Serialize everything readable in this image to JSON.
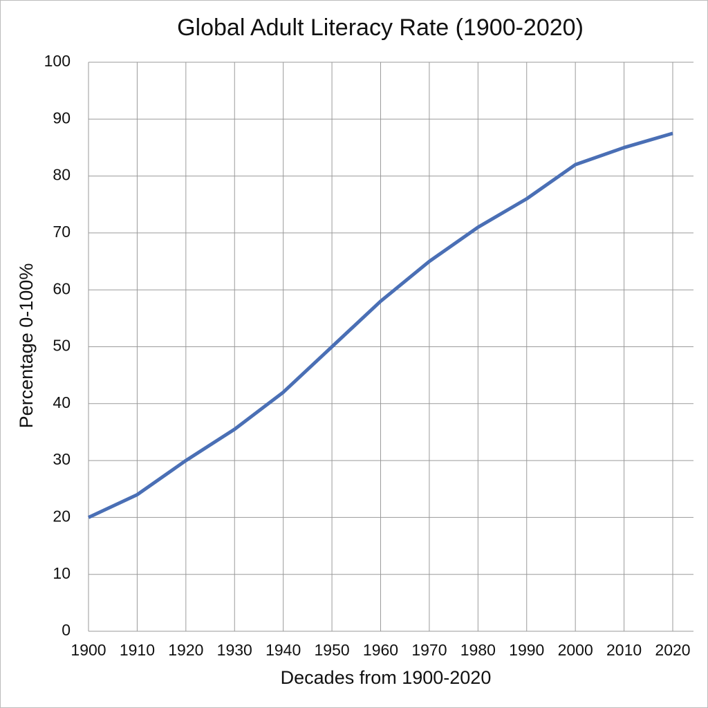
{
  "chart_data": {
    "type": "line",
    "title": "Global Adult Literacy Rate (1900-2020)",
    "x_label": "Decades from 1900-2020",
    "y_label": "Percentage 0-100%",
    "x": [
      1900,
      1910,
      1920,
      1930,
      1940,
      1950,
      1960,
      1970,
      1980,
      1990,
      2000,
      2010,
      2020
    ],
    "series": [
      {
        "name": "Global Adult Literacy Rate",
        "color": "#4a6fb5",
        "values": [
          20,
          24,
          30,
          35.5,
          42,
          50,
          58,
          65,
          71,
          76,
          82,
          85,
          87.5
        ]
      }
    ],
    "xlim": [
      1900,
      2020
    ],
    "xticks": [
      1900,
      1910,
      1920,
      1930,
      1940,
      1950,
      1960,
      1970,
      1980,
      1990,
      2000,
      2010,
      2020
    ],
    "ylim": [
      0,
      100
    ],
    "yticks": [
      0,
      10,
      20,
      30,
      40,
      50,
      60,
      70,
      80,
      90,
      100
    ],
    "grid": true
  }
}
